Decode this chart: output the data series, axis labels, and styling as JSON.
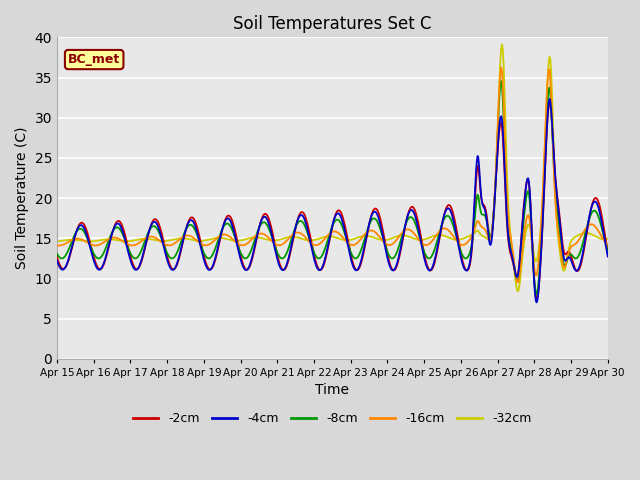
{
  "title": "Soil Temperatures Set C",
  "xlabel": "Time",
  "ylabel": "Soil Temperature (C)",
  "ylim": [
    0,
    40
  ],
  "yticks": [
    0,
    5,
    10,
    15,
    20,
    25,
    30,
    35,
    40
  ],
  "x_labels": [
    "Apr 15",
    "Apr 16",
    "Apr 17",
    "Apr 18",
    "Apr 19",
    "Apr 20",
    "Apr 21",
    "Apr 22",
    "Apr 23",
    "Apr 24",
    "Apr 25",
    "Apr 26",
    "Apr 27",
    "Apr 28",
    "Apr 29",
    "Apr 30"
  ],
  "annotation_label": "BC_met",
  "series_colors": [
    "#cc0000",
    "#0000cc",
    "#009900",
    "#ff8800",
    "#cccc00"
  ],
  "series_labels": [
    "-2cm",
    "-4cm",
    "-8cm",
    "-16cm",
    "-32cm"
  ],
  "background_color": "#e8e8e8",
  "grid_color": "#ffffff",
  "figsize": [
    6.4,
    4.8
  ],
  "dpi": 100
}
